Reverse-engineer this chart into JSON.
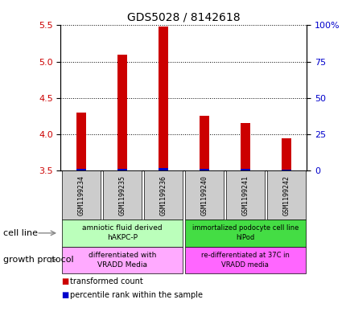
{
  "title": "GDS5028 / 8142618",
  "samples": [
    "GSM1199234",
    "GSM1199235",
    "GSM1199236",
    "GSM1199240",
    "GSM1199241",
    "GSM1199242"
  ],
  "red_values": [
    4.3,
    5.1,
    5.48,
    4.25,
    4.15,
    3.95
  ],
  "blue_values": [
    3.52,
    3.53,
    3.54,
    3.52,
    3.52,
    3.51
  ],
  "ylim": [
    3.5,
    5.5
  ],
  "yticks_left": [
    3.5,
    4.0,
    4.5,
    5.0,
    5.5
  ],
  "yticks_right": [
    0,
    25,
    50,
    75,
    100
  ],
  "ytick_labels_right": [
    "0",
    "25",
    "50",
    "75",
    "100%"
  ],
  "red_color": "#cc0000",
  "blue_color": "#0000cc",
  "legend_red_label": "transformed count",
  "legend_blue_label": "percentile rank within the sample",
  "cell_line_label": "cell line",
  "growth_protocol_label": "growth protocol",
  "sample_box_color": "#cccccc",
  "cell_line_colors": [
    "#bbffbb",
    "#44dd44"
  ],
  "growth_protocol_colors": [
    "#ffaaff",
    "#ff66ff"
  ],
  "cell_line_texts": [
    "amniotic fluid derived\nhAKPC-P",
    "immortalized podocyte cell line\nhIPod"
  ],
  "growth_protocol_texts": [
    "differentiated with\nVRADD Media",
    "re-differentiated at 37C in\nVRADD media"
  ]
}
